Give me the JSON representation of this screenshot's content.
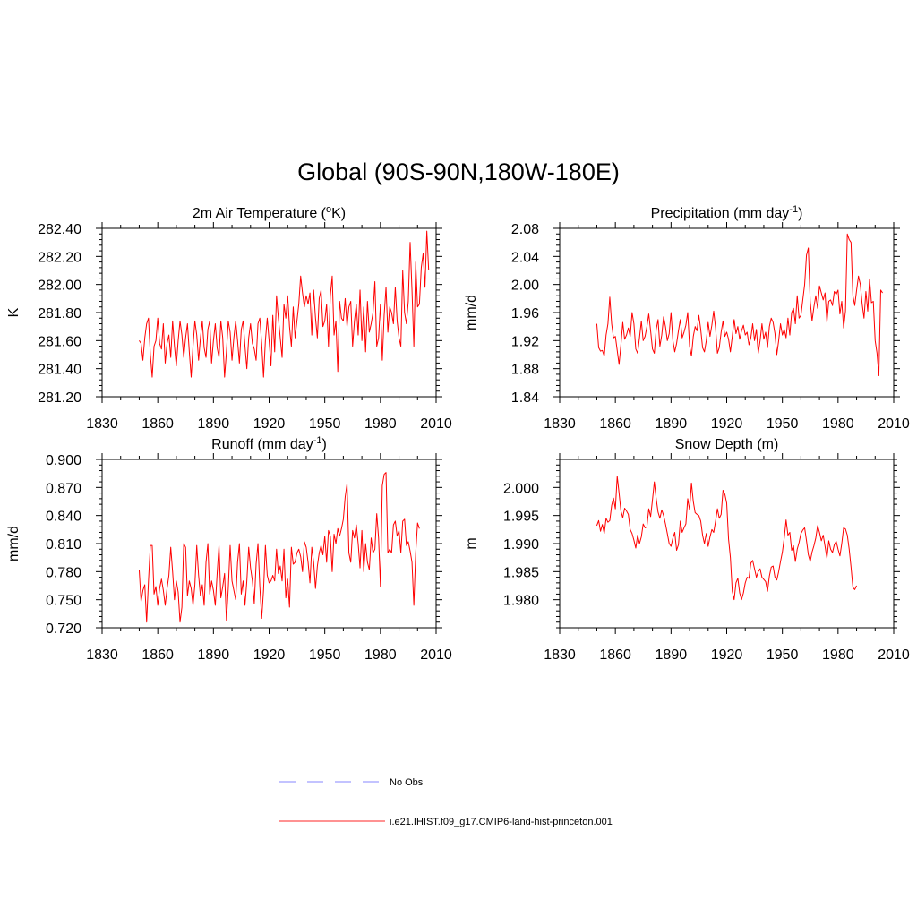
{
  "figure_title": "Global (90S-90N,180W-180E)",
  "legend": {
    "placement": "bottom-center",
    "entries": [
      {
        "label": "No Obs",
        "color": "#9f9fff",
        "dash": "dashed"
      },
      {
        "label": "i.e21.IHIST.f09_g17.CMIP6-land-hist-princeton.001",
        "color": "#ff5050",
        "dash": "solid"
      }
    ]
  },
  "colors": {
    "series": "#ff0000",
    "axes": "#000000"
  },
  "chart_data": [
    {
      "type": "line",
      "title": "2m Air Temperature (",
      "title_sup": "o",
      "title_post": "K)",
      "ylabel": "K",
      "xlim": [
        1830,
        2010
      ],
      "ylim": [
        281.2,
        282.4
      ],
      "xticks": [
        "1830",
        "1860",
        "1890",
        "1920",
        "1950",
        "1980",
        "2010"
      ],
      "yticks": [
        "281.20",
        "281.40",
        "281.60",
        "281.80",
        "282.00",
        "282.20",
        "282.40"
      ],
      "series": [
        {
          "x_start": 1850,
          "values": [
            281.6,
            281.58,
            281.46,
            281.62,
            281.72,
            281.76,
            281.5,
            281.34,
            281.56,
            281.6,
            281.76,
            281.58,
            281.54,
            281.72,
            281.44,
            281.58,
            281.64,
            281.48,
            281.74,
            281.56,
            281.42,
            281.6,
            281.74,
            281.64,
            281.48,
            281.62,
            281.72,
            281.52,
            281.34,
            281.56,
            281.74,
            281.64,
            281.46,
            281.62,
            281.74,
            281.55,
            281.48,
            281.68,
            281.74,
            281.44,
            281.6,
            281.72,
            281.55,
            281.48,
            281.74,
            281.62,
            281.34,
            281.52,
            281.74,
            281.66,
            281.46,
            281.62,
            281.74,
            281.6,
            281.44,
            281.68,
            281.74,
            281.56,
            281.4,
            281.62,
            281.72,
            281.58,
            281.54,
            281.46,
            281.72,
            281.76,
            281.58,
            281.34,
            281.6,
            281.76,
            281.6,
            281.42,
            281.78,
            281.52,
            281.92,
            281.76,
            281.62,
            281.48,
            281.86,
            281.76,
            281.92,
            281.7,
            281.56,
            281.84,
            281.62,
            281.74,
            281.86,
            282.06,
            281.94,
            281.84,
            281.92,
            281.86,
            281.94,
            281.64,
            281.96,
            281.76,
            281.62,
            281.9,
            281.96,
            281.7,
            281.74,
            281.86,
            281.56,
            281.92,
            282.06,
            281.64,
            281.74,
            281.38,
            281.88,
            281.76,
            281.74,
            281.9,
            281.7,
            281.84,
            281.88,
            281.56,
            281.74,
            281.86,
            281.64,
            281.96,
            281.6,
            281.84,
            281.52,
            281.88,
            281.66,
            281.72,
            281.8,
            282.02,
            281.56,
            281.62,
            281.86,
            281.46,
            281.78,
            281.98,
            281.66,
            281.84,
            281.8,
            281.72,
            281.98,
            281.74,
            281.62,
            281.56,
            282.1,
            281.8,
            281.72,
            281.88,
            282.3,
            281.96,
            281.56,
            282.16,
            281.84,
            281.86,
            282.12,
            282.22,
            281.98,
            282.38,
            282.1
          ]
        }
      ]
    },
    {
      "type": "line",
      "title": "Precipitation (mm day",
      "title_sup": "-1",
      "title_post": ")",
      "ylabel": "mm/d",
      "xlim": [
        1830,
        2010
      ],
      "ylim": [
        1.84,
        2.08
      ],
      "xticks": [
        "1830",
        "1860",
        "1890",
        "1920",
        "1950",
        "1980",
        "2010"
      ],
      "yticks": [
        "1.84",
        "1.88",
        "1.92",
        "1.96",
        "2.00",
        "2.04",
        "2.08"
      ],
      "series": [
        {
          "x_start": 1850,
          "values": [
            1.944,
            1.91,
            1.905,
            1.906,
            1.898,
            1.928,
            1.944,
            1.982,
            1.944,
            1.924,
            1.926,
            1.906,
            1.886,
            1.914,
            1.946,
            1.922,
            1.928,
            1.938,
            1.926,
            1.96,
            1.944,
            1.908,
            1.902,
            1.924,
            1.948,
            1.92,
            1.926,
            1.94,
            1.958,
            1.934,
            1.908,
            1.902,
            1.936,
            1.95,
            1.912,
            1.928,
            1.954,
            1.94,
            1.92,
            1.93,
            1.96,
            1.92,
            1.904,
            1.916,
            1.934,
            1.95,
            1.924,
            1.932,
            1.942,
            1.96,
            1.912,
            1.898,
            1.926,
            1.94,
            1.934,
            1.956,
            1.936,
            1.91,
            1.904,
            1.92,
            1.946,
            1.926,
            1.942,
            1.962,
            1.938,
            1.902,
            1.91,
            1.932,
            1.948,
            1.926,
            1.932,
            1.922,
            1.904,
            1.926,
            1.95,
            1.93,
            1.94,
            1.922,
            1.934,
            1.942,
            1.928,
            1.932,
            1.914,
            1.924,
            1.944,
            1.92,
            1.936,
            1.902,
            1.92,
            1.944,
            1.922,
            1.932,
            1.91,
            1.94,
            1.952,
            1.946,
            1.93,
            1.9,
            1.92,
            1.944,
            1.928,
            1.936,
            1.924,
            1.952,
            1.928,
            1.96,
            1.966,
            1.944,
            1.984,
            1.952,
            1.956,
            1.978,
            2.0,
            2.042,
            2.052,
            1.976,
            1.948,
            1.968,
            1.984,
            1.966,
            1.998,
            1.988,
            1.978,
            1.988,
            1.946,
            1.976,
            1.978,
            1.97,
            1.99,
            1.986,
            1.992,
            1.958,
            1.976,
            1.938,
            1.962,
            2.072,
            2.064,
            2.06,
            1.984,
            1.97,
            1.992,
            2.012,
            2.0,
            1.972,
            1.952,
            1.99,
            1.962,
            2.008,
            1.974,
            1.976,
            1.92,
            1.902,
            1.87,
            1.992,
            1.988
          ]
        }
      ]
    },
    {
      "type": "line",
      "title": "Runoff (mm day",
      "title_sup": "-1",
      "title_post": ")",
      "ylabel": "mm/d",
      "xlim": [
        1830,
        2010
      ],
      "ylim": [
        0.72,
        0.9
      ],
      "xticks": [
        "1830",
        "1860",
        "1890",
        "1920",
        "1950",
        "1980",
        "2010"
      ],
      "yticks": [
        "0.720",
        "0.750",
        "0.780",
        "0.810",
        "0.840",
        "0.870",
        "0.900"
      ],
      "series": [
        {
          "x_start": 1850,
          "values": [
            0.782,
            0.748,
            0.76,
            0.766,
            0.726,
            0.77,
            0.808,
            0.808,
            0.756,
            0.764,
            0.744,
            0.762,
            0.772,
            0.76,
            0.744,
            0.762,
            0.776,
            0.806,
            0.78,
            0.75,
            0.77,
            0.758,
            0.726,
            0.742,
            0.81,
            0.806,
            0.754,
            0.77,
            0.762,
            0.744,
            0.766,
            0.808,
            0.776,
            0.754,
            0.766,
            0.744,
            0.79,
            0.81,
            0.756,
            0.77,
            0.76,
            0.744,
            0.778,
            0.808,
            0.752,
            0.764,
            0.778,
            0.728,
            0.762,
            0.808,
            0.77,
            0.76,
            0.75,
            0.79,
            0.81,
            0.756,
            0.77,
            0.744,
            0.77,
            0.806,
            0.784,
            0.77,
            0.746,
            0.788,
            0.81,
            0.764,
            0.73,
            0.76,
            0.808,
            0.776,
            0.768,
            0.77,
            0.776,
            0.77,
            0.804,
            0.778,
            0.786,
            0.77,
            0.804,
            0.752,
            0.772,
            0.742,
            0.806,
            0.788,
            0.79,
            0.8,
            0.804,
            0.796,
            0.78,
            0.812,
            0.806,
            0.79,
            0.768,
            0.806,
            0.79,
            0.762,
            0.786,
            0.8,
            0.808,
            0.798,
            0.818,
            0.79,
            0.824,
            0.818,
            0.78,
            0.82,
            0.81,
            0.826,
            0.818,
            0.826,
            0.836,
            0.86,
            0.874,
            0.8,
            0.79,
            0.824,
            0.816,
            0.83,
            0.81,
            0.784,
            0.824,
            0.78,
            0.81,
            0.79,
            0.782,
            0.816,
            0.8,
            0.804,
            0.842,
            0.816,
            0.764,
            0.872,
            0.884,
            0.886,
            0.8,
            0.804,
            0.8,
            0.83,
            0.834,
            0.818,
            0.824,
            0.8,
            0.834,
            0.836,
            0.808,
            0.812,
            0.802,
            0.79,
            0.744,
            0.8,
            0.832,
            0.826
          ]
        }
      ]
    },
    {
      "type": "line",
      "title": "Snow Depth (m)",
      "title_sup": "",
      "title_post": "",
      "ylabel": "m",
      "xlim": [
        1830,
        2010
      ],
      "ylim": [
        1.975,
        2.005
      ],
      "xticks": [
        "1830",
        "1860",
        "1890",
        "1920",
        "1950",
        "1980",
        "2010"
      ],
      "yticks": [
        "1.980",
        "1.985",
        "1.990",
        "1.995",
        "2.000"
      ],
      "series": [
        {
          "x_start": 1850,
          "values": [
            1.9932,
            1.9941,
            1.9922,
            1.9934,
            1.9918,
            1.9945,
            1.9938,
            1.9941,
            1.9968,
            1.9981,
            1.9962,
            2.002,
            1.999,
            1.9958,
            1.9946,
            1.9963,
            1.9958,
            1.9952,
            1.9925,
            1.9918,
            1.9906,
            1.9892,
            1.9915,
            1.99,
            1.9912,
            1.9935,
            1.9928,
            1.993,
            1.9962,
            1.9948,
            1.9978,
            2.001,
            1.998,
            1.9956,
            1.9945,
            1.996,
            1.995,
            1.9935,
            1.9918,
            1.99,
            1.9895,
            1.991,
            1.992,
            1.9888,
            1.9898,
            1.994,
            1.992,
            1.9928,
            1.9935,
            1.998,
            1.996,
            2.0008,
            1.9975,
            1.9955,
            1.9952,
            1.995,
            1.994,
            1.9915,
            1.99,
            1.9918,
            1.9895,
            1.9912,
            1.9925,
            1.992,
            1.994,
            1.9962,
            1.9945,
            1.9952,
            1.9995,
            1.9988,
            1.9972,
            1.9908,
            1.9875,
            1.9815,
            1.98,
            1.983,
            1.9838,
            1.9812,
            1.98,
            1.9812,
            1.983,
            1.984,
            1.9838,
            1.9865,
            1.987,
            1.9855,
            1.984,
            1.985,
            1.9855,
            1.984,
            1.9836,
            1.9832,
            1.9815,
            1.9842,
            1.9858,
            1.986,
            1.984,
            1.9835,
            1.985,
            1.9868,
            1.9885,
            1.991,
            1.9942,
            1.9915,
            1.992,
            1.9888,
            1.9896,
            1.9868,
            1.989,
            1.9902,
            1.9918,
            1.9924,
            1.9928,
            1.9905,
            1.988,
            1.9868,
            1.9885,
            1.9896,
            1.991,
            1.9932,
            1.992,
            1.9905,
            1.9915,
            1.9895,
            1.9874,
            1.9905,
            1.989,
            1.9884,
            1.9898,
            1.9904,
            1.989,
            1.9878,
            1.99,
            1.9928,
            1.9926,
            1.9915,
            1.989,
            1.9858,
            1.9822,
            1.9818,
            1.9825
          ]
        }
      ]
    }
  ]
}
